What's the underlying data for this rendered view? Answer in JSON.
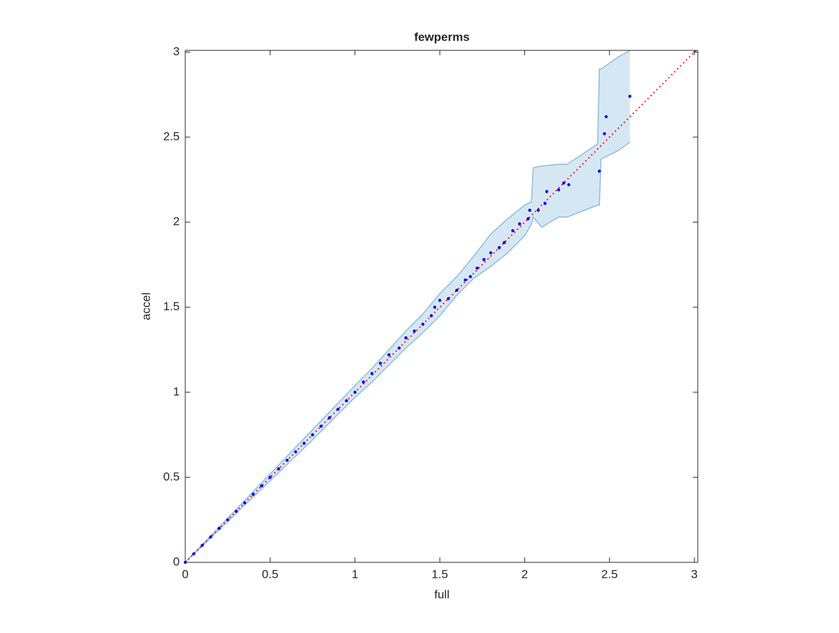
{
  "chart_data": {
    "type": "scatter",
    "title": "fewperms",
    "xlabel": "full",
    "ylabel": "accel",
    "xlim": [
      0,
      3.02
    ],
    "ylim": [
      0,
      3.01
    ],
    "xticks": [
      0,
      0.5,
      1,
      1.5,
      2,
      2.5,
      3
    ],
    "yticks": [
      0,
      0.5,
      1,
      1.5,
      2,
      2.5,
      3
    ],
    "band": {
      "color": "#d6e7f4",
      "edge_color": "#8bbde0",
      "x": [
        0,
        0.25,
        0.5,
        0.75,
        1.0,
        1.1,
        1.2,
        1.3,
        1.4,
        1.5,
        1.6,
        1.7,
        1.8,
        1.9,
        2.0,
        2.04,
        2.05,
        2.1,
        2.2,
        2.25,
        2.43,
        2.44,
        2.45,
        2.55,
        2.62
      ],
      "lower": [
        0,
        0.24,
        0.48,
        0.72,
        0.97,
        1.06,
        1.16,
        1.26,
        1.35,
        1.45,
        1.57,
        1.67,
        1.74,
        1.82,
        1.92,
        1.99,
        2.03,
        1.97,
        2.03,
        2.03,
        2.1,
        2.1,
        2.37,
        2.42,
        2.47
      ],
      "upper": [
        0,
        0.26,
        0.52,
        0.78,
        1.04,
        1.14,
        1.25,
        1.36,
        1.46,
        1.58,
        1.68,
        1.8,
        1.93,
        2.02,
        2.1,
        2.12,
        2.32,
        2.33,
        2.34,
        2.34,
        2.46,
        2.9,
        2.9,
        2.97,
        3.01
      ]
    },
    "reference": {
      "color": "#ff0000",
      "x": [
        0,
        3.02
      ],
      "y": [
        0,
        3.02
      ]
    },
    "series": [
      {
        "color": "#0000ff",
        "x": [
          0,
          0.05,
          0.1,
          0.15,
          0.2,
          0.25,
          0.3,
          0.35,
          0.4,
          0.45,
          0.5,
          0.55,
          0.6,
          0.65,
          0.7,
          0.75,
          0.8,
          0.85,
          0.9,
          0.95,
          1.0,
          1.05,
          1.1,
          1.15,
          1.2,
          1.26,
          1.3,
          1.35,
          1.4,
          1.45,
          1.47,
          1.5,
          1.55,
          1.6,
          1.65,
          1.68,
          1.72,
          1.76,
          1.8,
          1.85,
          1.88,
          1.93,
          1.97,
          2.02,
          2.03,
          2.08,
          2.12,
          2.13,
          2.2,
          2.23,
          2.26,
          2.44,
          2.47,
          2.48,
          2.62
        ],
        "y": [
          0,
          0.05,
          0.1,
          0.15,
          0.2,
          0.25,
          0.3,
          0.35,
          0.4,
          0.45,
          0.5,
          0.55,
          0.6,
          0.65,
          0.7,
          0.75,
          0.8,
          0.85,
          0.9,
          0.95,
          1.0,
          1.06,
          1.11,
          1.17,
          1.22,
          1.26,
          1.32,
          1.36,
          1.4,
          1.45,
          1.5,
          1.54,
          1.55,
          1.6,
          1.66,
          1.68,
          1.73,
          1.78,
          1.82,
          1.85,
          1.88,
          1.95,
          1.99,
          2.02,
          2.07,
          2.07,
          2.11,
          2.18,
          2.19,
          2.23,
          2.22,
          2.3,
          2.52,
          2.62,
          2.74
        ]
      }
    ]
  }
}
